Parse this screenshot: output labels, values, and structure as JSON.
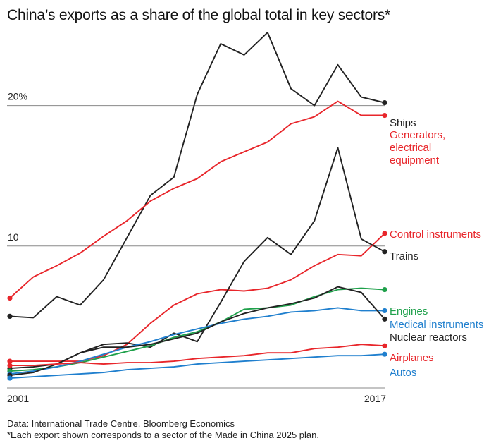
{
  "title": "China’s exports as a share of the global total in key sectors*",
  "source": "Data: International Trade Centre, Bloomberg Economics",
  "footnote": "*Each export shown corresponds to a sector of the Made in China 2025 plan.",
  "colors": {
    "black": "#222222",
    "red": "#e8262b",
    "blue": "#1f7fce",
    "green": "#1ea04a",
    "reference_line": "#8a8a8a"
  },
  "chart_data": {
    "type": "line",
    "x": [
      2001,
      2002,
      2003,
      2004,
      2005,
      2006,
      2007,
      2008,
      2009,
      2010,
      2011,
      2012,
      2013,
      2014,
      2015,
      2016,
      2017
    ],
    "x_tick_labels": [
      "2001",
      "2017"
    ],
    "y_reference_lines": [
      {
        "value": 20,
        "label": "20%"
      },
      {
        "value": 10,
        "label": "10"
      }
    ],
    "ylim": [
      0,
      25
    ],
    "grid": false,
    "legend": "end-of-line labels",
    "series": [
      {
        "name": "Ships",
        "color": "black",
        "values": [
          5.0,
          4.9,
          6.4,
          5.8,
          7.6,
          10.6,
          13.6,
          14.9,
          20.8,
          24.4,
          23.6,
          25.2,
          21.2,
          20.0,
          22.9,
          20.6,
          20.2
        ]
      },
      {
        "name": "Generators, electrical equipment",
        "color": "red",
        "values": [
          6.3,
          7.8,
          8.6,
          9.5,
          10.7,
          11.8,
          13.2,
          14.1,
          14.8,
          16.0,
          16.7,
          17.4,
          18.7,
          19.2,
          20.3,
          19.3,
          19.3
        ]
      },
      {
        "name": "Control instruments",
        "color": "red",
        "values": [
          1.8,
          1.8,
          1.8,
          1.8,
          2.2,
          3.0,
          4.5,
          5.8,
          6.6,
          6.9,
          6.8,
          7.0,
          7.6,
          8.6,
          9.4,
          9.3,
          10.9
        ]
      },
      {
        "name": "Trains",
        "color": "black",
        "values": [
          1.3,
          1.4,
          1.6,
          2.4,
          3.0,
          3.1,
          2.8,
          3.8,
          3.2,
          6.0,
          8.9,
          10.6,
          9.4,
          11.8,
          17.0,
          10.5,
          9.6
        ]
      },
      {
        "name": "Engines",
        "color": "green",
        "values": [
          1.1,
          1.2,
          1.4,
          1.7,
          2.1,
          2.5,
          2.9,
          3.5,
          3.9,
          4.6,
          5.5,
          5.6,
          5.8,
          6.4,
          6.9,
          7.0,
          6.9
        ]
      },
      {
        "name": "Medical instruments",
        "color": "blue",
        "values": [
          0.9,
          1.1,
          1.4,
          1.8,
          2.3,
          2.8,
          3.2,
          3.7,
          4.1,
          4.5,
          4.8,
          5.0,
          5.3,
          5.4,
          5.6,
          5.4,
          5.4
        ]
      },
      {
        "name": "Nuclear reactors",
        "color": "black",
        "values": [
          0.8,
          1.0,
          1.6,
          2.4,
          2.8,
          2.8,
          3.0,
          3.4,
          3.8,
          4.6,
          5.2,
          5.6,
          5.9,
          6.3,
          7.1,
          6.7,
          4.8
        ]
      },
      {
        "name": "Airplanes",
        "color": "red",
        "values": [
          1.5,
          1.5,
          1.6,
          1.7,
          1.6,
          1.7,
          1.7,
          1.8,
          2.0,
          2.1,
          2.2,
          2.4,
          2.4,
          2.7,
          2.8,
          3.0,
          2.9
        ]
      },
      {
        "name": "Autos",
        "color": "blue",
        "values": [
          0.6,
          0.7,
          0.8,
          0.9,
          1.0,
          1.2,
          1.3,
          1.4,
          1.6,
          1.7,
          1.8,
          1.9,
          2.0,
          2.1,
          2.2,
          2.2,
          2.3
        ]
      }
    ]
  }
}
